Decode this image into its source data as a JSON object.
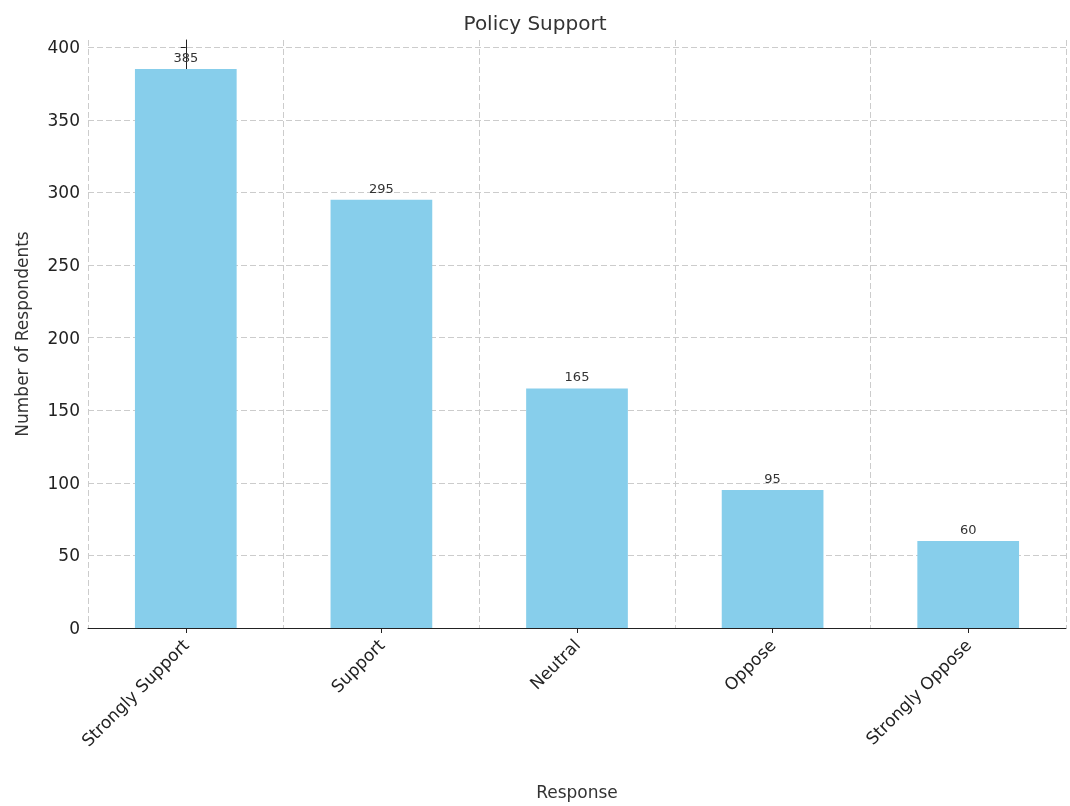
{
  "chart_data": {
    "type": "bar",
    "title": "Policy Support",
    "xlabel": "Response",
    "ylabel": "Number of Respondents",
    "categories": [
      "Strongly Support",
      "Support",
      "Neutral",
      "Oppose",
      "Strongly Oppose"
    ],
    "values": [
      385,
      295,
      165,
      95,
      60
    ],
    "color": "#87ceeb",
    "ylim": [
      0,
      405
    ],
    "yticks": [
      0,
      50,
      100,
      150,
      200,
      250,
      300,
      350,
      400
    ],
    "grid": true,
    "data_labels": true
  }
}
